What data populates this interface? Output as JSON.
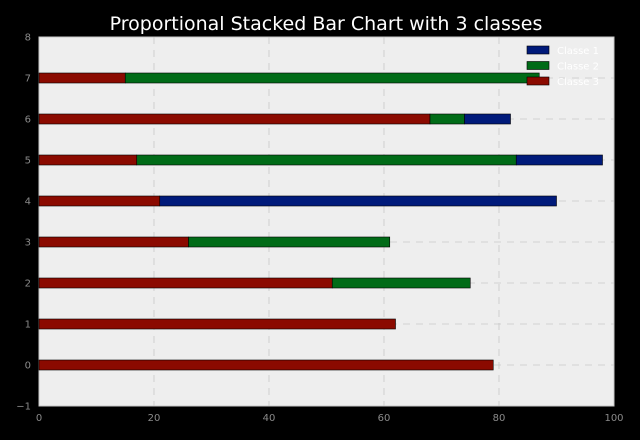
{
  "chart_data": {
    "type": "bar",
    "orientation": "horizontal",
    "stacked": true,
    "title": "Proportional Stacked Bar Chart with 3 classes",
    "xlabel": "",
    "ylabel": "",
    "xlim": [
      0,
      100
    ],
    "ylim": [
      -1,
      8
    ],
    "xticks": [
      "0",
      "20",
      "40",
      "60",
      "80",
      "100"
    ],
    "yticks": [
      "−1",
      "0",
      "1",
      "2",
      "3",
      "4",
      "5",
      "6",
      "7",
      "8"
    ],
    "grid": true,
    "legend_position": "top-right",
    "categories": [
      0,
      1,
      2,
      3,
      4,
      5,
      6,
      7
    ],
    "stack_order": [
      "Classe 3",
      "Classe 2",
      "Classe 1"
    ],
    "series": [
      {
        "name": "Classe 1",
        "color": "#001a7a",
        "values": [
          0,
          0,
          0,
          0,
          69,
          15,
          8,
          0
        ]
      },
      {
        "name": "Classe 2",
        "color": "#006b17",
        "values": [
          0,
          0,
          24,
          35,
          0,
          66,
          6,
          72
        ]
      },
      {
        "name": "Classe 3",
        "color": "#8b0a00",
        "values": [
          79,
          62,
          51,
          26,
          21,
          17,
          68,
          15
        ]
      }
    ]
  }
}
